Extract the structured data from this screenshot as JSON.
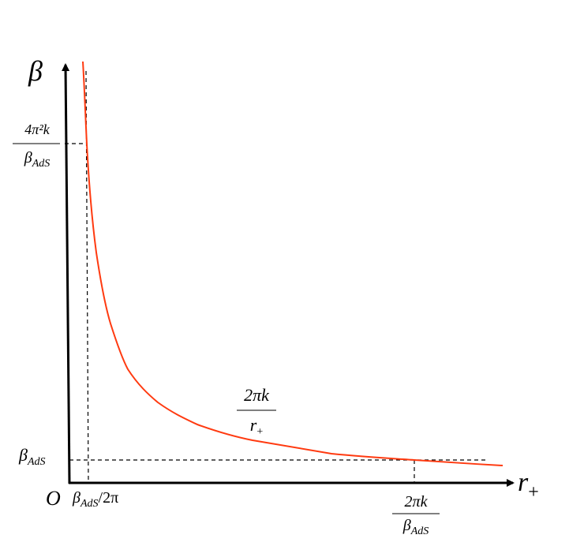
{
  "axes": {
    "y_label": "β",
    "x_label": {
      "base": "r",
      "sub": "+"
    },
    "origin": "O"
  },
  "y_marks": [
    {
      "numerator": "4π²k",
      "denominator": {
        "base": "β",
        "sub": "AdS"
      }
    },
    {
      "base": "β",
      "sub": "AdS"
    }
  ],
  "x_marks": [
    {
      "base": "β",
      "sub": "AdS",
      "after": "/2π"
    },
    {
      "numerator": "2πk",
      "denominator": {
        "base": "β",
        "sub": "AdS"
      }
    }
  ],
  "curve_label": {
    "numerator": "2πk",
    "denominator": {
      "base": "r",
      "sub": "+"
    }
  }
}
